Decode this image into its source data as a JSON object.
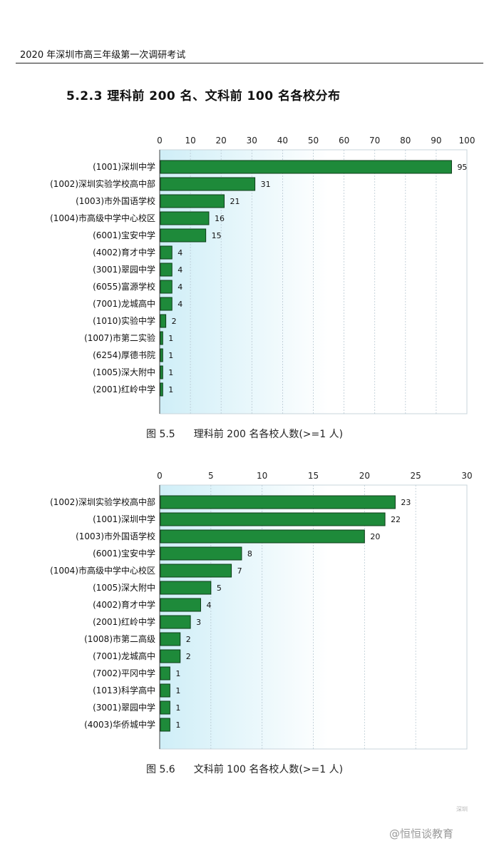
{
  "header": {
    "title": "2020 年深圳市高三年级第一次调研考试"
  },
  "section": {
    "title": "5.2.3   理科前 200 名、文科前 100 名各校分布"
  },
  "captions": [
    {
      "number": "图  5.5",
      "text": "理科前 200 名各校人数(>=1 人)"
    },
    {
      "number": "图  5.6",
      "text": "文科前 100 名各校人数(>=1 人)"
    }
  ],
  "watermark": {
    "text": "@恒恒谈教育",
    "logo_text": "深圳"
  },
  "colors": {
    "bar_fill": "#1e8a3a",
    "bar_stroke": "#0d3d18",
    "plot_bg_left": "#cfeef7",
    "plot_bg_right": "#ffffff",
    "grid": "#b9c9d3"
  },
  "chart_data": [
    {
      "type": "bar",
      "orientation": "horizontal",
      "xlim": [
        0,
        100
      ],
      "ticks": [
        0,
        10,
        20,
        30,
        40,
        50,
        60,
        70,
        80,
        90,
        100
      ],
      "grid": true,
      "categories": [
        "(1001)深圳中学",
        "(1002)深圳实验学校高中部",
        "(1003)市外国语学校",
        "(1004)市高级中学中心校区",
        "(6001)宝安中学",
        "(4002)育才中学",
        "(3001)翠园中学",
        "(6055)富源学校",
        "(7001)龙城高中",
        "(1010)实验中学",
        "(1007)市第二实验",
        "(6254)厚德书院",
        "(1005)深大附中",
        "(2001)红岭中学"
      ],
      "values": [
        95,
        31,
        21,
        16,
        15,
        4,
        4,
        4,
        4,
        2,
        1,
        1,
        1,
        1
      ]
    },
    {
      "type": "bar",
      "orientation": "horizontal",
      "xlim": [
        0,
        30
      ],
      "ticks": [
        0,
        5,
        10,
        15,
        20,
        25,
        30
      ],
      "grid": true,
      "categories": [
        "(1002)深圳实验学校高中部",
        "(1001)深圳中学",
        "(1003)市外国语学校",
        "(6001)宝安中学",
        "(1004)市高级中学中心校区",
        "(1005)深大附中",
        "(4002)育才中学",
        "(2001)红岭中学",
        "(1008)市第二高级",
        "(7001)龙城高中",
        "(7002)平冈中学",
        "(1013)科学高中",
        "(3001)翠园中学",
        "(4003)华侨城中学"
      ],
      "values": [
        23,
        22,
        20,
        8,
        7,
        5,
        4,
        3,
        2,
        2,
        1,
        1,
        1,
        1
      ]
    }
  ]
}
